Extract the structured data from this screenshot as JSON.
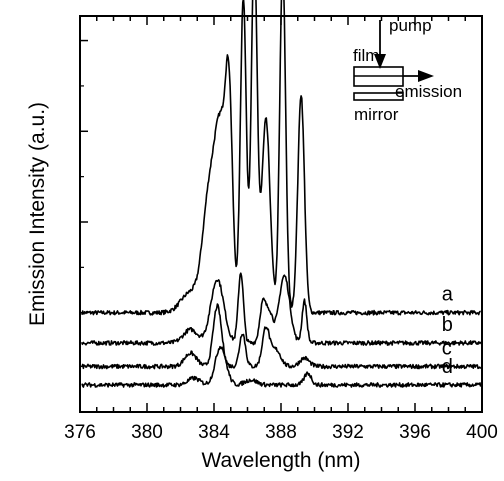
{
  "chart_data": {
    "type": "line",
    "xlabel": "Wavelength (nm)",
    "ylabel": "Emission Intensity (a.u.)",
    "xlim": [
      376,
      400
    ],
    "x_ticks": [
      "376",
      "380",
      "384",
      "388",
      "392",
      "396",
      "400"
    ],
    "x_tick_values": [
      376,
      380,
      384,
      388,
      392,
      396,
      400
    ],
    "y_ticks_labeled": false,
    "grid": false,
    "series": [
      {
        "name": "a",
        "baseline": 0.46,
        "peaks": [
          {
            "x": 383.7,
            "height": 0.65,
            "width": 0.55
          },
          {
            "x": 384.4,
            "height": 1.0,
            "width": 0.5
          },
          {
            "x": 384.9,
            "height": 1.1,
            "width": 0.3
          },
          {
            "x": 385.75,
            "height": 1.88,
            "width": 0.25
          },
          {
            "x": 386.4,
            "height": 2.15,
            "width": 0.25
          },
          {
            "x": 387.1,
            "height": 1.15,
            "width": 0.35
          },
          {
            "x": 388.1,
            "height": 2.05,
            "width": 0.25
          },
          {
            "x": 389.2,
            "height": 1.3,
            "width": 0.28
          },
          {
            "x": 382.6,
            "height": 0.12,
            "width": 0.8
          }
        ]
      },
      {
        "name": "b",
        "baseline": 0.28,
        "peaks": [
          {
            "x": 382.6,
            "height": 0.08,
            "width": 0.6
          },
          {
            "x": 384.2,
            "height": 0.38,
            "width": 0.55
          },
          {
            "x": 385.6,
            "height": 0.42,
            "width": 0.22
          },
          {
            "x": 386.9,
            "height": 0.22,
            "width": 0.25
          },
          {
            "x": 387.3,
            "height": 0.18,
            "width": 0.3
          },
          {
            "x": 388.2,
            "height": 0.4,
            "width": 0.45
          },
          {
            "x": 389.4,
            "height": 0.25,
            "width": 0.2
          }
        ]
      },
      {
        "name": "c",
        "baseline": 0.14,
        "peaks": [
          {
            "x": 382.6,
            "height": 0.08,
            "width": 0.5
          },
          {
            "x": 384.2,
            "height": 0.36,
            "width": 0.35
          },
          {
            "x": 385.7,
            "height": 0.2,
            "width": 0.25
          },
          {
            "x": 387.1,
            "height": 0.23,
            "width": 0.3
          },
          {
            "x": 387.7,
            "height": 0.1,
            "width": 0.4
          },
          {
            "x": 389.4,
            "height": 0.05,
            "width": 0.4
          }
        ]
      },
      {
        "name": "d",
        "baseline": 0.03,
        "peaks": [
          {
            "x": 382.8,
            "height": 0.04,
            "width": 0.5
          },
          {
            "x": 384.4,
            "height": 0.23,
            "width": 0.45
          },
          {
            "x": 386.2,
            "height": 0.03,
            "width": 0.5
          },
          {
            "x": 389.6,
            "height": 0.07,
            "width": 0.3
          }
        ]
      }
    ]
  },
  "inset": {
    "pump_label": "pump",
    "film_label": "film",
    "emission_label": "emission",
    "mirror_label": "mirror"
  }
}
